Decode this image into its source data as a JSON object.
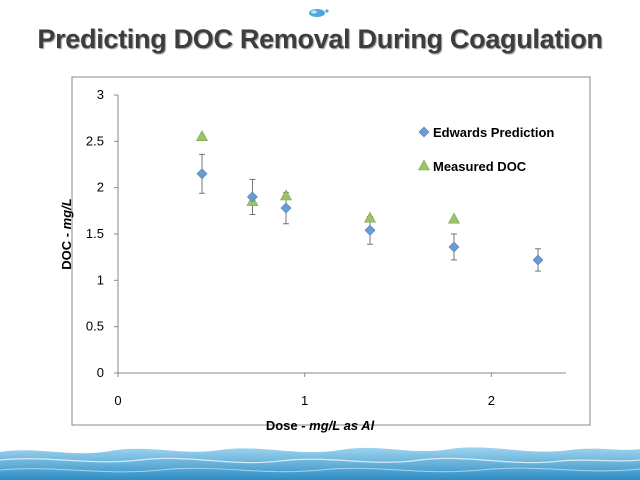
{
  "slide": {
    "title": "Predicting DOC Removal During Coagulation",
    "logo_icon": "water-drop-logo-icon",
    "footer_decoration": "water-wave-icon"
  },
  "chart_data": {
    "type": "scatter",
    "title": "",
    "xlabel": {
      "main": "Dose - ",
      "italic": "mg/L as Al"
    },
    "ylabel": {
      "main": "DOC - ",
      "italic": "mg/L"
    },
    "xlim": [
      0,
      2.4
    ],
    "ylim": [
      0,
      3
    ],
    "xticks": [
      "0",
      "1",
      "2"
    ],
    "xtick_values": [
      0,
      1,
      2
    ],
    "yticks": [
      "0",
      "0.5",
      "1",
      "1.5",
      "2",
      "2.5",
      "3"
    ],
    "ytick_values": [
      0,
      0.5,
      1,
      1.5,
      2,
      2.5,
      3
    ],
    "grid": false,
    "legend_position": "top-right",
    "series": [
      {
        "name": "Edwards Prediction",
        "marker": "diamond",
        "color": "#6b9bd1",
        "x": [
          0.45,
          0.72,
          0.9,
          1.35,
          1.8,
          2.25
        ],
        "y": [
          2.15,
          1.9,
          1.78,
          1.54,
          1.36,
          1.22
        ],
        "error": [
          0.21,
          0.19,
          0.17,
          0.15,
          0.14,
          0.12
        ]
      },
      {
        "name": "Measured DOC",
        "marker": "triangle",
        "color": "#9bc36b",
        "x": [
          0.45,
          0.72,
          0.9,
          1.35,
          1.8
        ],
        "y": [
          2.55,
          1.85,
          1.91,
          1.67,
          1.66
        ]
      }
    ]
  }
}
